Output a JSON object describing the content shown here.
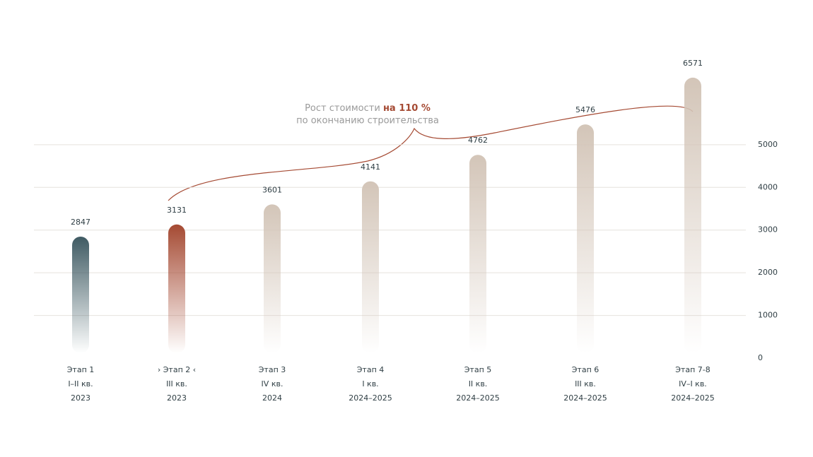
{
  "chart_data": {
    "type": "bar",
    "annotation": {
      "text": "Рост стоимости",
      "highlight": "на 110 %",
      "line2": "по окончанию строительства"
    },
    "categories": [
      "Этап 1",
      "› Этап 2 ‹",
      "Этап 3",
      "Этап 4",
      "Этап 5",
      "Этап 6",
      "Этап 7-8"
    ],
    "quarters": [
      "I–II кв.",
      "III кв.",
      "IV кв.",
      "I кв.",
      "II кв.",
      "III кв.",
      "IV–I кв."
    ],
    "years": [
      "2023",
      "2023",
      "2024",
      "2024–2025",
      "2024–2025",
      "2024–2025",
      "2024–2025"
    ],
    "values": [
      2847,
      3131,
      3601,
      4141,
      4762,
      5476,
      6571
    ],
    "colors": [
      "#3f5a63",
      "#a54a33",
      "#d3c5b8",
      "#d3c5b8",
      "#d3c5b8",
      "#d3c5b8",
      "#d3c5b8"
    ],
    "highlight_color": "#a54a33",
    "ylim": [
      0,
      7000
    ],
    "yticks": [
      0,
      1000,
      2000,
      3000,
      4000,
      5000
    ],
    "grid": true
  }
}
